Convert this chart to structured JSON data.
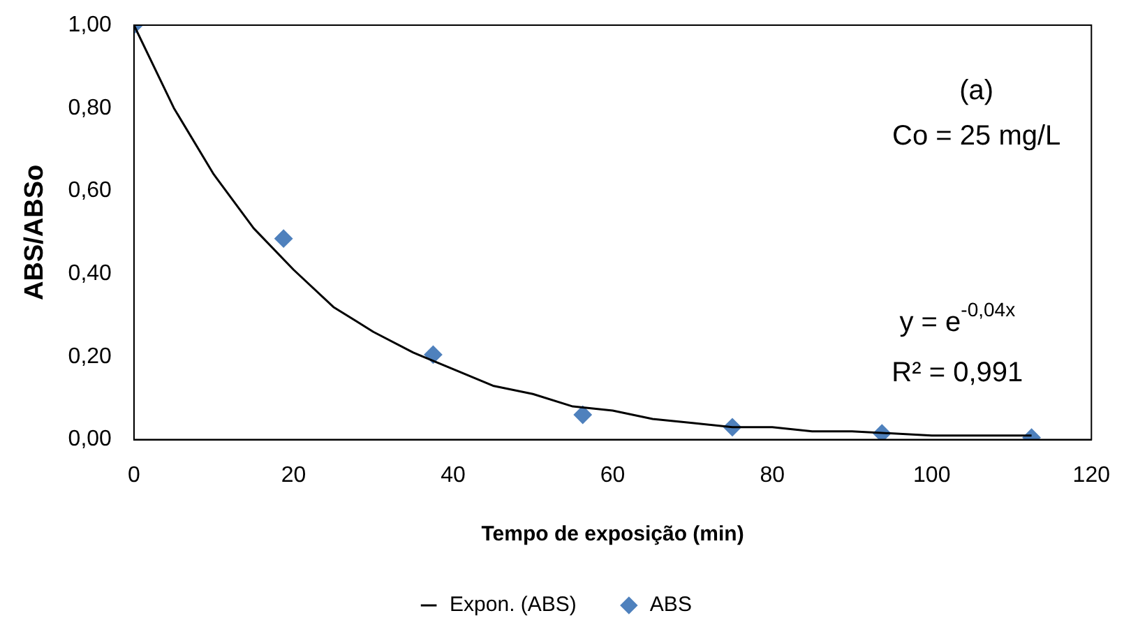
{
  "chart_data": {
    "type": "scatter",
    "xlabel": "Tempo de exposição (min)",
    "ylabel": "ABS/ABSo",
    "xlim": [
      0,
      120
    ],
    "xticks": [
      0,
      20,
      40,
      60,
      80,
      100,
      120
    ],
    "ylim": [
      0,
      1
    ],
    "yticks": [
      {
        "value": 0,
        "label": "0,00"
      },
      {
        "value": 0.2,
        "label": "0,20"
      },
      {
        "value": 0.4,
        "label": "0,40"
      },
      {
        "value": 0.6,
        "label": "0,60"
      },
      {
        "value": 0.8,
        "label": "0,80"
      },
      {
        "value": 1,
        "label": "1,00"
      }
    ],
    "grid": false,
    "legend": "bottom",
    "annotations": [
      "(a)",
      "Co = 25 mg/L",
      "y = e$^{-0,04x}$",
      "R² = 0,991"
    ],
    "series": [
      {
        "name": "ABS",
        "type": "scatter",
        "marker": "diamond",
        "color": "#4f81bd",
        "x": [
          0,
          18.75,
          37.5,
          56.25,
          75,
          93.75,
          112.5
        ],
        "values": [
          1,
          0.485,
          0.205,
          0.06,
          0.03,
          0.015,
          0.005
        ]
      },
      {
        "name": "Expon. (ABS)",
        "type": "line",
        "marker": "none",
        "line_style": "solid",
        "color": "#000000",
        "x": [
          0,
          5,
          10,
          15,
          20,
          25,
          30,
          35,
          40,
          45,
          50,
          55,
          60,
          65,
          70,
          75,
          80,
          85,
          90,
          100,
          112.5
        ],
        "values": [
          1,
          0.8,
          0.64,
          0.51,
          0.41,
          0.32,
          0.26,
          0.21,
          0.17,
          0.13,
          0.11,
          0.08,
          0.07,
          0.05,
          0.04,
          0.03,
          0.03,
          0.02,
          0.02,
          0.01,
          0.01
        ]
      }
    ]
  }
}
